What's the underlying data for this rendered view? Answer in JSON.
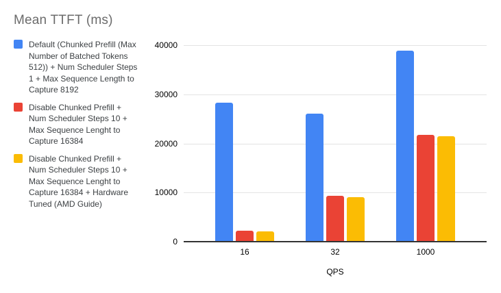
{
  "title": "Mean TTFT (ms)",
  "legend": {
    "items": [
      {
        "label": "Default (Chunked Prefill (Max\nNumber of Batched Tokens\n512)) + Num Scheduler Steps\n1 + Max Sequence Length to\nCapture 8192",
        "color": "#4285F4",
        "swatch": "blue-square"
      },
      {
        "label": "Disable Chunked Prefill +\nNum Scheduler Steps 10 +\nMax Sequence Lenght to\nCapture 16384",
        "color": "#EA4335",
        "swatch": "red-square"
      },
      {
        "label": "Disable Chunked Prefill +\nNum Scheduler Steps 10 +\nMax Sequence Lenght to\nCapture 16384 + Hardware\nTuned (AMD Guide)",
        "color": "#FBBC04",
        "swatch": "yellow-square"
      }
    ]
  },
  "chart_data": {
    "type": "bar",
    "title": "Mean TTFT (ms)",
    "xlabel": "QPS",
    "ylabel": "",
    "categories": [
      "16",
      "32",
      "1000"
    ],
    "series": [
      {
        "name": "Default (Chunked Prefill (Max Number of Batched Tokens 512)) + Num Scheduler Steps 1 + Max Sequence Length to Capture 8192",
        "color": "#4285F4",
        "values": [
          28300,
          26000,
          38900
        ]
      },
      {
        "name": "Disable Chunked Prefill + Num Scheduler Steps 10 + Max Sequence Lenght to Capture 16384",
        "color": "#EA4335",
        "values": [
          2200,
          9300,
          21800
        ]
      },
      {
        "name": "Disable Chunked Prefill + Num Scheduler Steps 10 + Max Sequence Lenght to Capture 16384 + Hardware Tuned (AMD Guide)",
        "color": "#FBBC04",
        "values": [
          2100,
          9000,
          21400
        ]
      }
    ],
    "ylim": [
      0,
      40000
    ],
    "yticks": [
      0,
      10000,
      20000,
      30000,
      40000
    ],
    "grid": true,
    "legend_position": "left"
  },
  "colors": {
    "grid": "#e3e3e3",
    "axis": "#333333",
    "title_text": "#6b6b6b",
    "legend_text": "#3c4043",
    "tick_text": "#000000"
  }
}
